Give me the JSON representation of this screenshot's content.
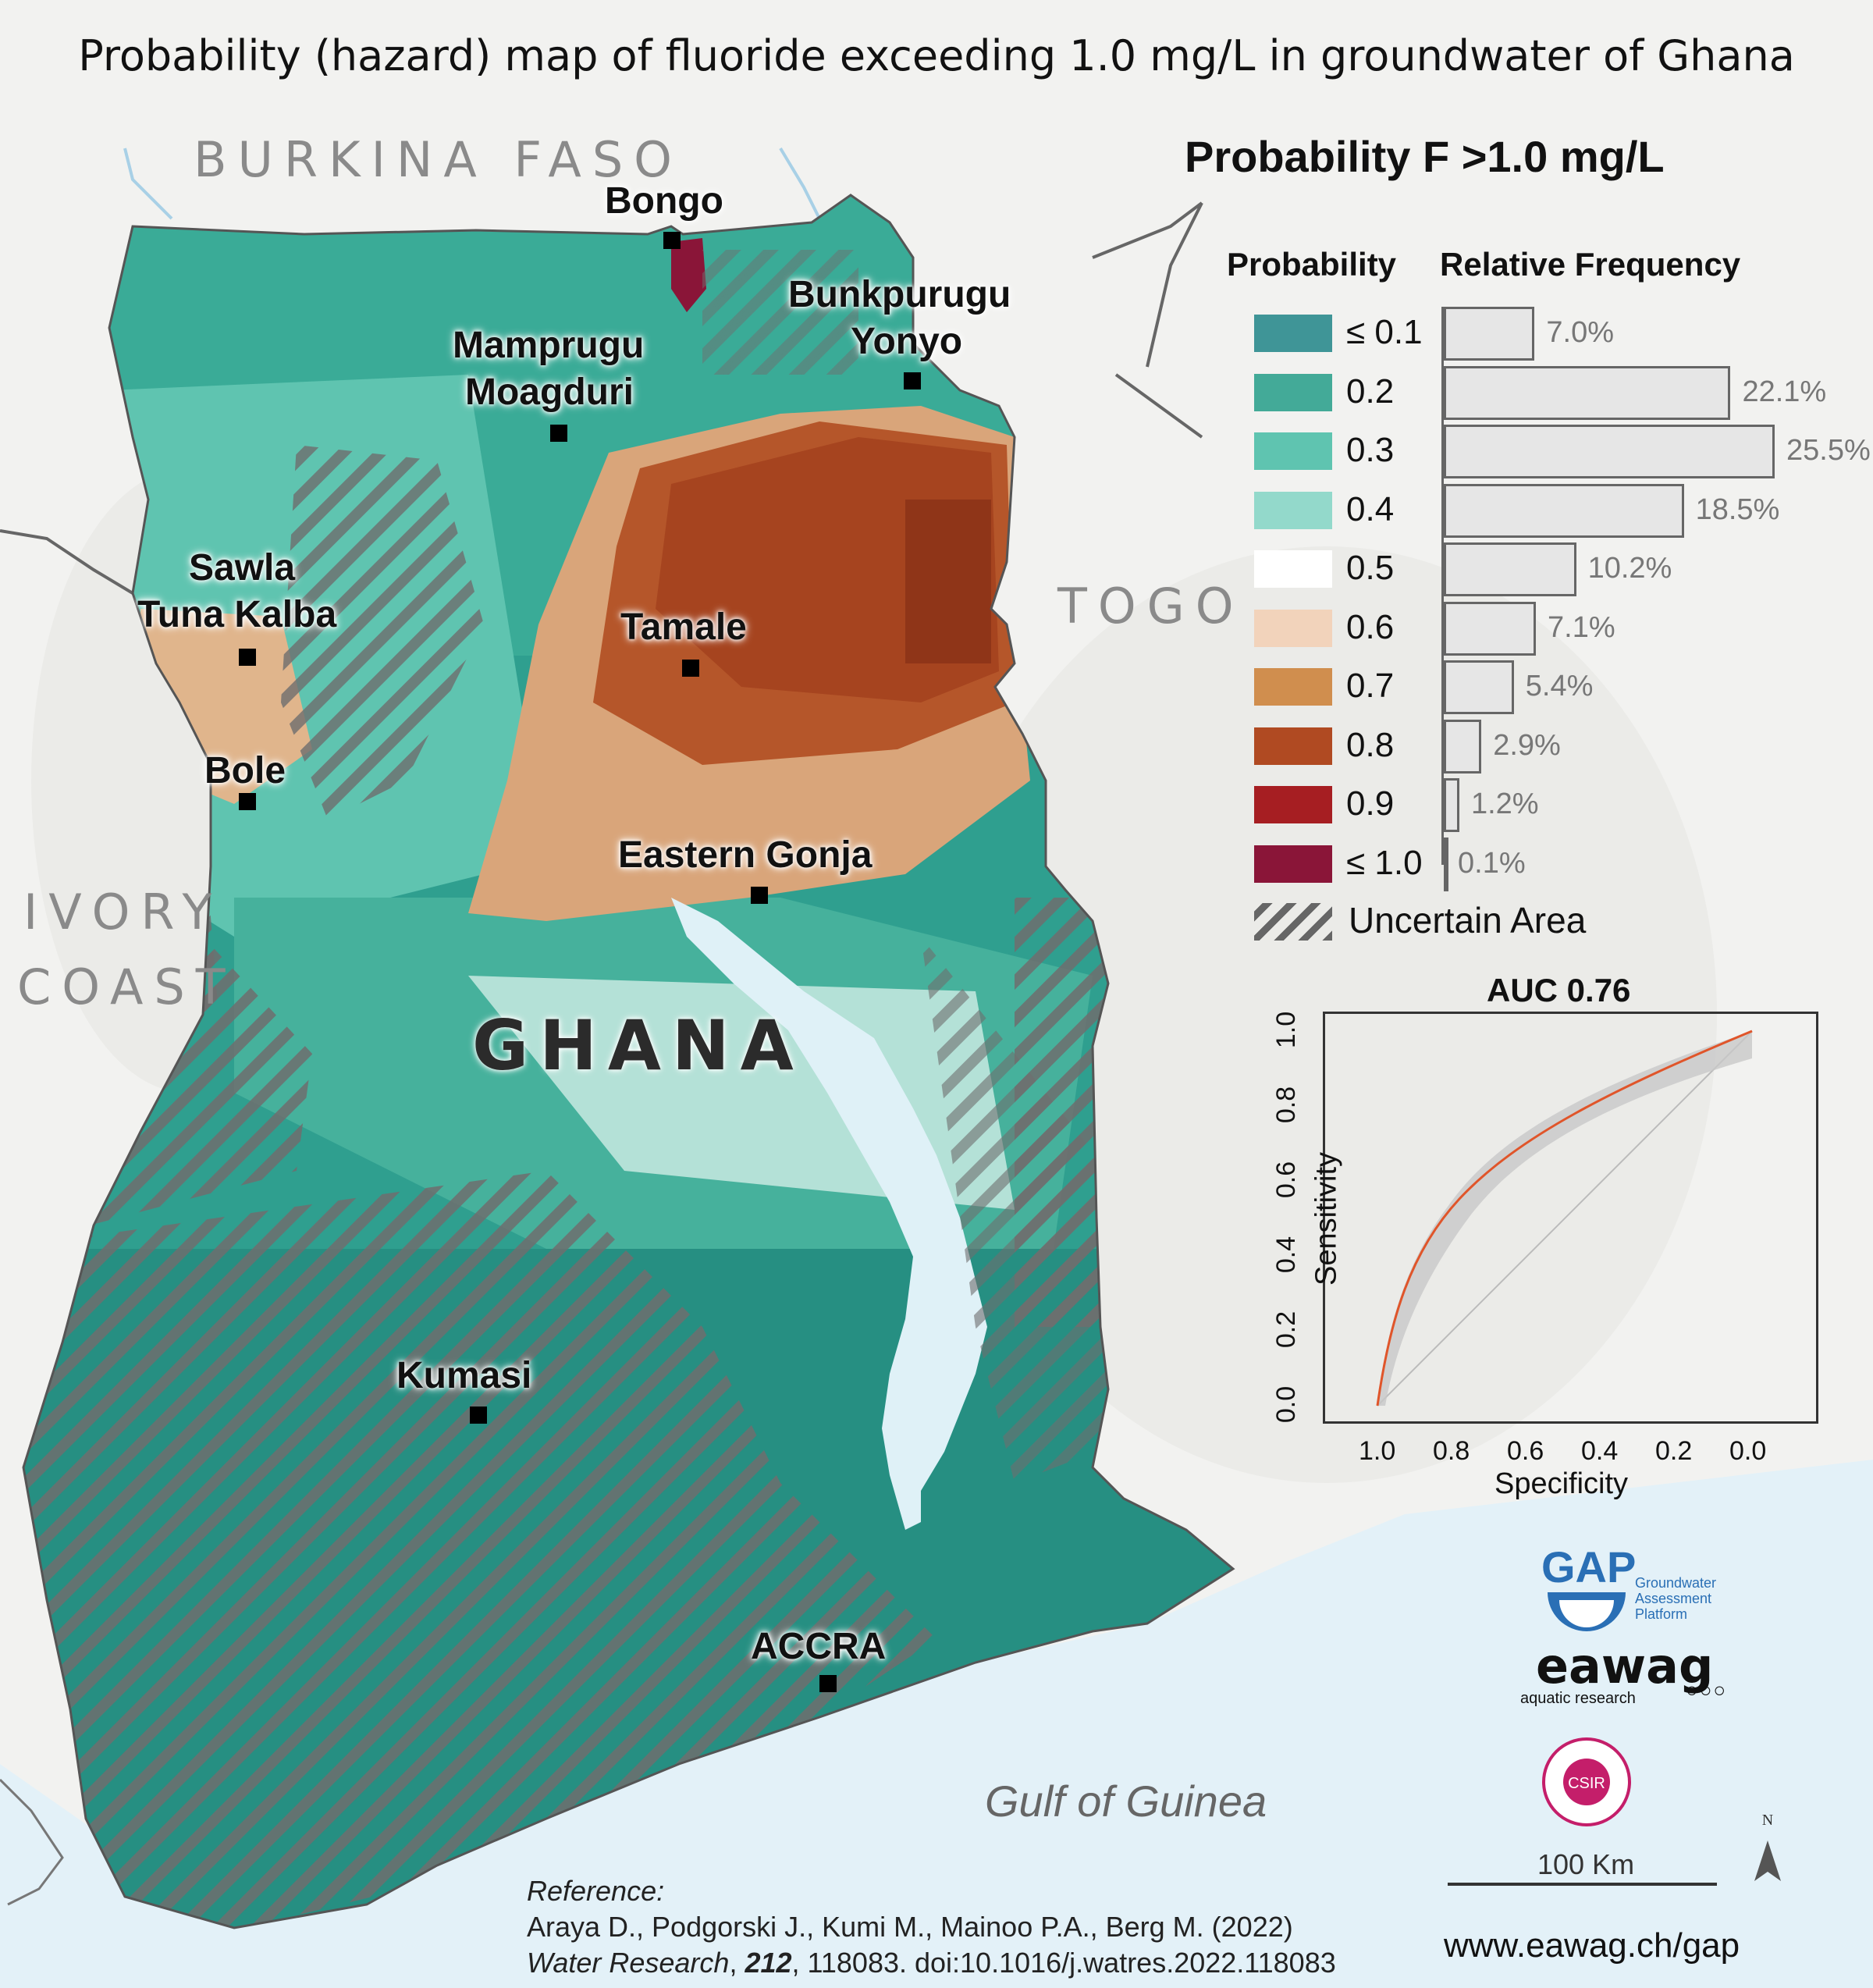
{
  "title": "Probability (hazard) map of fluoride exceeding 1.0 mg/L in groundwater of Ghana",
  "countries": {
    "burkina_faso": "BURKINA FASO",
    "togo": "TOGO",
    "ivory": "IVORY",
    "coast": "COAST",
    "ghana": "GHANA"
  },
  "water_body": "Gulf of Guinea",
  "cities": [
    {
      "name_line1": "Bongo",
      "name_line2": ""
    },
    {
      "name_line1": "Bunkpurugu",
      "name_line2": "Yonyo"
    },
    {
      "name_line1": "Mamprugu",
      "name_line2": "Moagduri"
    },
    {
      "name_line1": "Sawla",
      "name_line2": "Tuna Kalba"
    },
    {
      "name_line1": "Tamale",
      "name_line2": ""
    },
    {
      "name_line1": "Bole",
      "name_line2": ""
    },
    {
      "name_line1": "Eastern Gonja",
      "name_line2": ""
    },
    {
      "name_line1": "Kumasi",
      "name_line2": ""
    },
    {
      "name_line1": "ACCRA",
      "name_line2": ""
    }
  ],
  "legend": {
    "title": "Probability F >1.0 mg/L",
    "col_probability": "Probability",
    "col_frequency": "Relative Frequency",
    "classes": [
      {
        "label": "≤ 0.1",
        "color": "#3f9597",
        "frequency": 7.0,
        "frequency_label": "7.0%"
      },
      {
        "label": "0.2",
        "color": "#43aa98",
        "frequency": 22.1,
        "frequency_label": "22.1%"
      },
      {
        "label": "0.3",
        "color": "#5fc4b0",
        "frequency": 25.5,
        "frequency_label": "25.5%"
      },
      {
        "label": "0.4",
        "color": "#93d9cb",
        "frequency": 18.5,
        "frequency_label": "18.5%"
      },
      {
        "label": "0.5",
        "color": "#ffffff",
        "frequency": 10.2,
        "frequency_label": "10.2%"
      },
      {
        "label": "0.6",
        "color": "#f2d3bb",
        "frequency": 7.1,
        "frequency_label": "7.1%"
      },
      {
        "label": "0.7",
        "color": "#d08e4e",
        "frequency": 5.4,
        "frequency_label": "5.4%"
      },
      {
        "label": "0.8",
        "color": "#b04a22",
        "frequency": 2.9,
        "frequency_label": "2.9%"
      },
      {
        "label": "0.9",
        "color": "#a61e22",
        "frequency": 1.2,
        "frequency_label": "1.2%"
      },
      {
        "label": "≤ 1.0",
        "color": "#8a1538",
        "frequency": 0.1,
        "frequency_label": "0.1%"
      }
    ],
    "uncertain_label": "Uncertain Area"
  },
  "roc": {
    "title": "AUC 0.76",
    "x_label": "Specificity",
    "y_label": "Sensitivity",
    "x_ticks": [
      "1.0",
      "0.8",
      "0.6",
      "0.4",
      "0.2",
      "0.0"
    ],
    "y_ticks": [
      "0.0",
      "0.2",
      "0.4",
      "0.6",
      "0.8",
      "1.0"
    ]
  },
  "logos": {
    "gap_name": "GAP",
    "gap_sub1": "Groundwater",
    "gap_sub2": "Assessment",
    "gap_sub3": "Platform",
    "eawag_name": "eawag",
    "eawag_sub": "aquatic research",
    "csir_name": "CSIR"
  },
  "scale_bar": "100 Km",
  "north": "N",
  "reference": {
    "heading": "Reference:",
    "authors": "Araya D., Podgorski J., Kumi M., Mainoo P.A., Berg M. (2022)",
    "journal": "Water Research",
    "volume": "212",
    "rest": ", 118083.  doi:10.1016/j.watres.2022.118083"
  },
  "url": "www.eawag.ch/gap"
}
